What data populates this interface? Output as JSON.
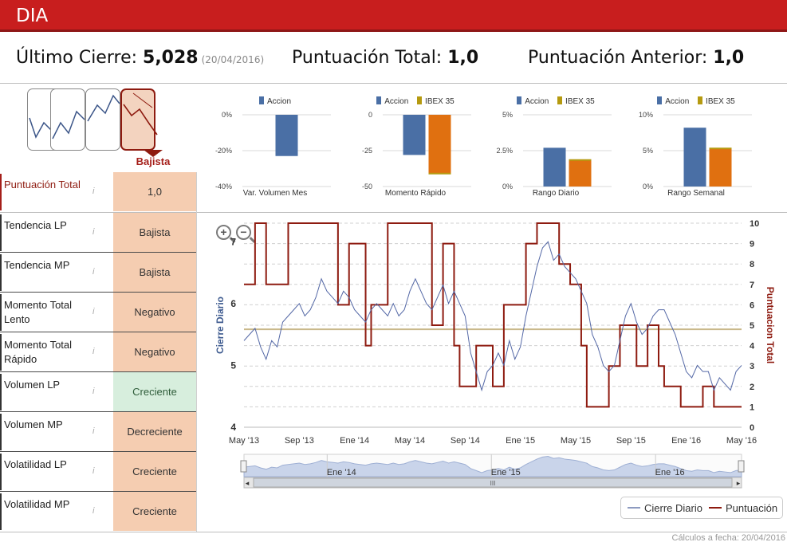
{
  "header": {
    "ticker": "DIA"
  },
  "summary": {
    "last_close_label": "Último Cierre:",
    "last_close_value": "5,028",
    "last_close_date": "(20/04/2016)",
    "total_score_label": "Puntuación Total:",
    "total_score_value": "1,0",
    "previous_score_label": "Puntuación Anterior:",
    "previous_score_value": "1,0"
  },
  "trend_picker": {
    "selected_label": "Bajista"
  },
  "indicators": [
    {
      "label": "Puntuación Total",
      "value": "1,0"
    },
    {
      "label": "Tendencia LP",
      "value": "Bajista"
    },
    {
      "label": "Tendencia MP",
      "value": "Bajista"
    },
    {
      "label": "Momento Total Lento",
      "value": "Negativo"
    },
    {
      "label": "Momento Total Rápido",
      "value": "Negativo"
    },
    {
      "label": "Volumen LP",
      "value": "Creciente"
    },
    {
      "label": "Volumen MP",
      "value": "Decreciente"
    },
    {
      "label": "Volatilidad LP",
      "value": "Creciente"
    },
    {
      "label": "Volatilidad MP",
      "value": "Creciente"
    }
  ],
  "colors": {
    "accion": "#4a6fa5",
    "ibex_fill": "#e07010",
    "ibex_legend": "#b59a10",
    "cierre_line": "#5468a6",
    "puntuacion_line": "#8e1b10",
    "ref_line": "#c9b88a"
  },
  "chart_data": [
    {
      "type": "bar",
      "title": "Var. Volumen Mes",
      "series": [
        {
          "name": "Accion",
          "values": [
            -23
          ]
        }
      ],
      "ylim": [
        -40,
        0
      ],
      "yticks": [
        "0%",
        "-20%",
        "-40%"
      ]
    },
    {
      "type": "bar",
      "title": "Momento Rápido",
      "series": [
        {
          "name": "Accion",
          "values": [
            -28
          ]
        },
        {
          "name": "IBEX 35",
          "values": [
            -41
          ]
        }
      ],
      "ylim": [
        -50,
        0
      ],
      "yticks": [
        "0",
        "-25",
        "-50"
      ]
    },
    {
      "type": "bar",
      "title": "Rango Diario",
      "series": [
        {
          "name": "Accion",
          "values": [
            2.7
          ]
        },
        {
          "name": "IBEX 35",
          "values": [
            1.85
          ]
        }
      ],
      "ylim": [
        0,
        5
      ],
      "yticks": [
        "5%",
        "2.5%",
        "0%"
      ]
    },
    {
      "type": "bar",
      "title": "Rango Semanal",
      "series": [
        {
          "name": "Accion",
          "values": [
            8.2
          ]
        },
        {
          "name": "IBEX 35",
          "values": [
            5.3
          ]
        }
      ],
      "ylim": [
        0,
        10
      ],
      "yticks": [
        "10%",
        "5%",
        "0%"
      ]
    },
    {
      "type": "line",
      "title": "",
      "ylabel_left": "Cierre Diario",
      "ylabel_right": "Puntuacion Total",
      "y_left_lim": [
        4,
        7.3
      ],
      "y_left_ticks": [
        4,
        5,
        6,
        7
      ],
      "y_right_lim": [
        0,
        10
      ],
      "y_right_ticks": [
        0,
        1,
        2,
        3,
        4,
        5,
        6,
        7,
        8,
        9,
        10
      ],
      "x_labels": [
        "May '13",
        "Sep '13",
        "Ene '14",
        "May '14",
        "Sep '14",
        "Ene '15",
        "May '15",
        "Sep '15",
        "Ene '16",
        "May '16"
      ],
      "navigator_labels": [
        "Ene '14",
        "Ene '15",
        "Ene '16"
      ],
      "reference_line_right": 4.8,
      "series": [
        {
          "name": "Cierre Diario",
          "axis": "left",
          "x": [
            0,
            0.1,
            0.2,
            0.3,
            0.4,
            0.5,
            0.6,
            0.7,
            0.8,
            0.9,
            1.0,
            1.1,
            1.2,
            1.3,
            1.4,
            1.5,
            1.6,
            1.7,
            1.8,
            1.9,
            2.0,
            2.1,
            2.2,
            2.3,
            2.4,
            2.5,
            2.6,
            2.7,
            2.8,
            2.9,
            3.0,
            3.1,
            3.2,
            3.3,
            3.4,
            3.5,
            3.6,
            3.7,
            3.8,
            3.9,
            4.0,
            4.1,
            4.2,
            4.3,
            4.4,
            4.5,
            4.6,
            4.7,
            4.8,
            4.9,
            5.0,
            5.1,
            5.2,
            5.3,
            5.4,
            5.5,
            5.6,
            5.7,
            5.8,
            5.9,
            6.0,
            6.1,
            6.2,
            6.3,
            6.4,
            6.5,
            6.6,
            6.7,
            6.8,
            6.9,
            7.0,
            7.1,
            7.2,
            7.3,
            7.4,
            7.5,
            7.6,
            7.7,
            7.8,
            7.9,
            8.0,
            8.1,
            8.2,
            8.3,
            8.4,
            8.5,
            8.6,
            8.7,
            8.8,
            8.9,
            9.0
          ],
          "values": [
            5.4,
            5.5,
            5.6,
            5.3,
            5.1,
            5.4,
            5.3,
            5.7,
            5.8,
            5.9,
            6.0,
            5.8,
            5.9,
            6.1,
            6.4,
            6.2,
            6.1,
            6.0,
            6.2,
            6.1,
            5.9,
            5.8,
            5.7,
            5.9,
            6.0,
            5.9,
            5.8,
            6.0,
            5.8,
            5.9,
            6.2,
            6.4,
            6.2,
            6.0,
            5.9,
            6.1,
            6.3,
            6.0,
            6.2,
            6.0,
            5.8,
            5.2,
            4.9,
            4.6,
            4.9,
            5.0,
            5.2,
            5.0,
            5.4,
            5.1,
            5.3,
            5.8,
            6.2,
            6.6,
            6.9,
            7.0,
            6.7,
            6.8,
            6.6,
            6.5,
            6.4,
            6.2,
            6.0,
            5.5,
            5.3,
            5.0,
            4.9,
            5.0,
            5.4,
            5.8,
            6.0,
            5.7,
            5.5,
            5.6,
            5.8,
            5.9,
            5.9,
            5.7,
            5.5,
            5.2,
            4.9,
            4.8,
            5.0,
            4.9,
            4.9,
            4.6,
            4.8,
            4.7,
            4.6,
            4.9,
            5.0
          ]
        },
        {
          "name": "Puntuación",
          "axis": "right",
          "x": [
            0,
            0.2,
            0.2,
            0.4,
            0.4,
            0.8,
            0.8,
            1.7,
            1.7,
            1.9,
            1.9,
            2.2,
            2.2,
            2.3,
            2.3,
            2.6,
            2.6,
            3.4,
            3.4,
            3.6,
            3.6,
            3.8,
            3.8,
            3.9,
            3.9,
            4.2,
            4.2,
            4.5,
            4.5,
            4.7,
            4.7,
            5.1,
            5.1,
            5.3,
            5.3,
            5.7,
            5.7,
            5.9,
            5.9,
            6.1,
            6.1,
            6.2,
            6.2,
            6.6,
            6.6,
            6.8,
            6.8,
            7.1,
            7.1,
            7.3,
            7.3,
            7.5,
            7.5,
            7.6,
            7.6,
            7.9,
            7.9,
            8.3,
            8.3,
            8.5,
            8.5,
            8.7,
            8.7,
            9.0
          ],
          "values": [
            7,
            7,
            10,
            10,
            7,
            7,
            10,
            10,
            6,
            6,
            9,
            9,
            4,
            4,
            6,
            6,
            10,
            10,
            5,
            5,
            9,
            9,
            4,
            4,
            2,
            2,
            4,
            4,
            2,
            2,
            6,
            6,
            9,
            9,
            10,
            10,
            8,
            8,
            7,
            7,
            4,
            4,
            1,
            1,
            3,
            3,
            5,
            5,
            3,
            3,
            5,
            5,
            3,
            3,
            2,
            2,
            1,
            1,
            2,
            2,
            1,
            1,
            1,
            1
          ]
        }
      ]
    }
  ],
  "main_legend": {
    "cierre": "Cierre Diario",
    "puntuacion": "Puntuación"
  },
  "footer": {
    "calc_date": "Cálculos a fecha: 20/04/2016"
  }
}
